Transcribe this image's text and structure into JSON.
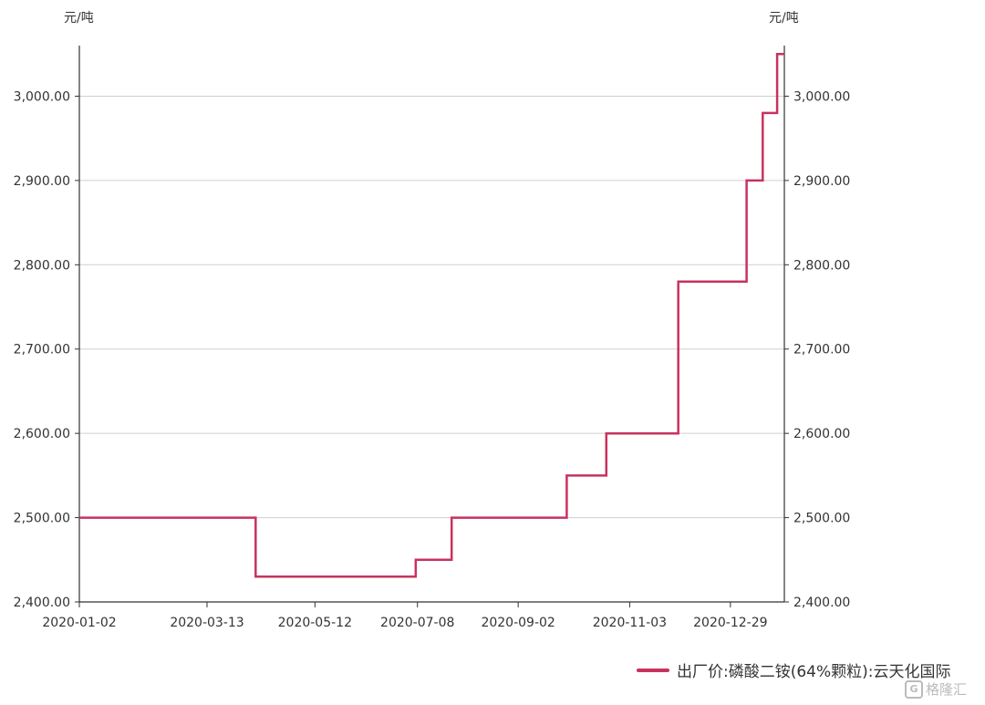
{
  "chart_data": {
    "type": "line",
    "step": true,
    "unit_left": "元/吨",
    "unit_right": "元/吨",
    "ylim": [
      2400,
      3060
    ],
    "yticks": [
      2400,
      2500,
      2600,
      2700,
      2800,
      2900,
      3000
    ],
    "ytick_labels": [
      "2,400.00",
      "2,500.00",
      "2,600.00",
      "2,700.00",
      "2,800.00",
      "2,900.00",
      "3,000.00"
    ],
    "xlim": [
      "2020-01-02",
      "2021-01-28"
    ],
    "xticks": [
      "2020-01-02",
      "2020-03-13",
      "2020-05-12",
      "2020-07-08",
      "2020-09-02",
      "2020-11-03",
      "2020-12-29"
    ],
    "grid": true,
    "legend_position": "bottom-right",
    "series": [
      {
        "name": "出厂价:磷酸二铵(64%颗粒):云天化国际",
        "color": "#c8325e",
        "points": [
          [
            "2020-01-02",
            2500
          ],
          [
            "2020-04-09",
            2430
          ],
          [
            "2020-07-07",
            2450
          ],
          [
            "2020-07-27",
            2500
          ],
          [
            "2020-09-29",
            2550
          ],
          [
            "2020-10-21",
            2600
          ],
          [
            "2020-11-30",
            2780
          ],
          [
            "2021-01-07",
            2900
          ],
          [
            "2021-01-16",
            2980
          ],
          [
            "2021-01-24",
            3050
          ],
          [
            "2021-01-28",
            3050
          ]
        ]
      }
    ]
  },
  "watermark": {
    "text": "格隆汇",
    "icon": "G"
  }
}
